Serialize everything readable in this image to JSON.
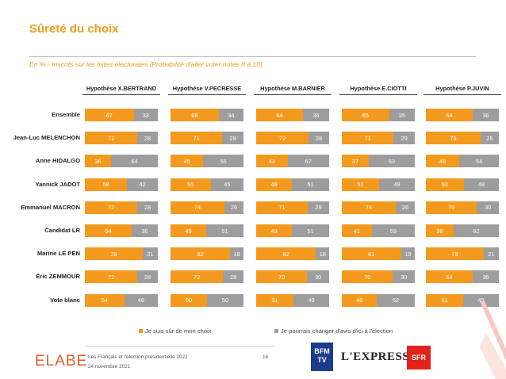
{
  "title": "Sûreté du choix",
  "subtitle": "En % - Inscrits sur les listes électorales (Probabilité d'aller voter notes 8 à 10)",
  "colors": {
    "sure": "#f39a1e",
    "change": "#9d9d9d",
    "title": "#f39a1e"
  },
  "chart_data": {
    "type": "bar",
    "orientation": "horizontal",
    "stacked": true,
    "unit": "%",
    "categories": [
      "Ensemble",
      "Jean-Luc MELENCHON",
      "Anne HIDALGO",
      "Yannick JADOT",
      "Emmanuel MACRON",
      "Candidat LR",
      "Marine LE PEN",
      "Éric ZEMMOUR",
      "Vote blanc"
    ],
    "panels": [
      {
        "title": "Hypothèse X.BERTRAND",
        "series": [
          {
            "name": "Je suis sûr de mon choix",
            "values": [
              67,
              72,
              36,
              58,
              72,
              64,
              79,
              72,
              54
            ]
          },
          {
            "name": "Je pourrais changer d'avis d'ici à l'élection",
            "values": [
              33,
              28,
              64,
              42,
              28,
              36,
              21,
              28,
              46
            ]
          }
        ]
      },
      {
        "title": "Hypothèse V.PECRESSE",
        "series": [
          {
            "name": "Je suis sûr de mon choix",
            "values": [
              66,
              71,
              45,
              55,
              74,
              49,
              82,
              72,
              50
            ]
          },
          {
            "name": "Je pourrais changer d'avis d'ici à l'élection",
            "values": [
              34,
              29,
              55,
              45,
              26,
              51,
              18,
              28,
              50
            ]
          }
        ]
      },
      {
        "title": "Hypothèse M.BARNIER",
        "series": [
          {
            "name": "Je suis sûr de mon choix",
            "values": [
              64,
              72,
              43,
              49,
              71,
              49,
              82,
              70,
              51
            ]
          },
          {
            "name": "Je pourrais changer d'avis d'ici à l'élection",
            "values": [
              36,
              28,
              57,
              51,
              29,
              51,
              18,
              30,
              49
            ]
          }
        ]
      },
      {
        "title": "Hypothèse E.CIOTTI",
        "series": [
          {
            "name": "Je suis sûr de mon choix",
            "values": [
              65,
              71,
              37,
              51,
              74,
              41,
              81,
              70,
              48
            ]
          },
          {
            "name": "Je pourrais changer d'avis d'ici à l'élection",
            "values": [
              35,
              29,
              63,
              49,
              26,
              59,
              19,
              30,
              52
            ]
          }
        ]
      },
      {
        "title": "Hypothèse P.JUVIN",
        "series": [
          {
            "name": "Je suis sûr de mon choix",
            "values": [
              64,
              75,
              46,
              52,
              70,
              38,
              79,
              64,
              51
            ]
          },
          {
            "name": "Je pourrais changer d'avis d'ici à l'élection",
            "values": [
              36,
              25,
              54,
              48,
              30,
              62,
              21,
              36,
              49
            ]
          }
        ]
      }
    ],
    "legend": [
      "Je suis sûr de mon choix",
      "Je pourrais changer d'avis d'ici à l'élection"
    ],
    "legend_position": "bottom"
  },
  "footer": {
    "brand": "ELABE",
    "study": "Les Français et l'élection présidentielle 2022",
    "date": "24 novembre 2021",
    "page": "16",
    "partners": [
      "BFM TV",
      "L'EXPRESS",
      "SFR"
    ]
  }
}
